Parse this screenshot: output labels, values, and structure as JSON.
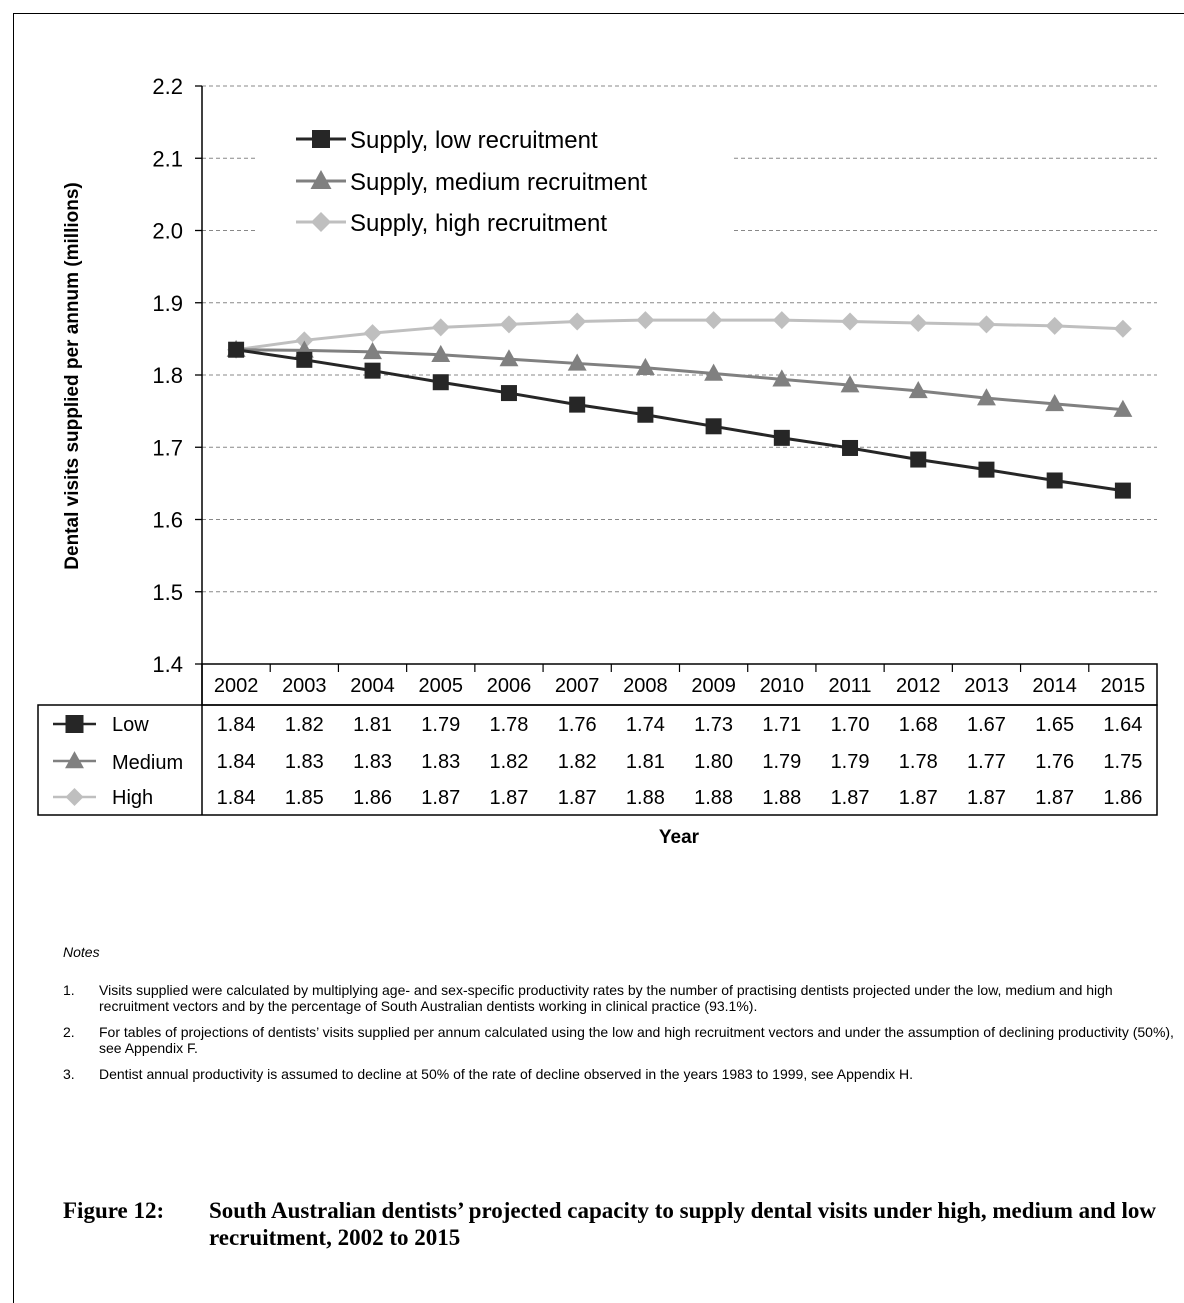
{
  "chart_data": {
    "type": "line",
    "title": "",
    "xlabel": "Year",
    "ylabel": "Dental visits supplied per annum (millions)",
    "ylim": [
      1.4,
      2.2
    ],
    "yticks": [
      "1.4",
      "1.5",
      "1.6",
      "1.7",
      "1.8",
      "1.9",
      "2.0",
      "2.1",
      "2.2"
    ],
    "grid": true,
    "legend_position": "top-left",
    "categories": [
      "2002",
      "2003",
      "2004",
      "2005",
      "2006",
      "2007",
      "2008",
      "2009",
      "2010",
      "2011",
      "2012",
      "2013",
      "2014",
      "2015"
    ],
    "series": [
      {
        "name": "Supply, low recruitment",
        "table_label": "Low",
        "marker": "square",
        "color": "#262626",
        "values": [
          1.835,
          1.821,
          1.806,
          1.79,
          1.775,
          1.759,
          1.745,
          1.729,
          1.713,
          1.699,
          1.683,
          1.669,
          1.654,
          1.64
        ],
        "table_values": [
          "1.84",
          "1.82",
          "1.81",
          "1.79",
          "1.78",
          "1.76",
          "1.74",
          "1.73",
          "1.71",
          "1.70",
          "1.68",
          "1.67",
          "1.65",
          "1.64"
        ]
      },
      {
        "name": "Supply, medium recruitment",
        "table_label": "Medium",
        "marker": "triangle",
        "color": "#808080",
        "values": [
          1.835,
          1.834,
          1.832,
          1.828,
          1.822,
          1.816,
          1.81,
          1.802,
          1.794,
          1.786,
          1.778,
          1.768,
          1.76,
          1.752
        ],
        "table_values": [
          "1.84",
          "1.83",
          "1.83",
          "1.83",
          "1.82",
          "1.82",
          "1.81",
          "1.80",
          "1.79",
          "1.79",
          "1.78",
          "1.77",
          "1.76",
          "1.75"
        ]
      },
      {
        "name": "Supply, high recruitment",
        "table_label": "High",
        "marker": "diamond",
        "color": "#bfbfbf",
        "values": [
          1.835,
          1.848,
          1.858,
          1.866,
          1.87,
          1.874,
          1.876,
          1.876,
          1.876,
          1.874,
          1.872,
          1.87,
          1.868,
          1.864
        ],
        "table_values": [
          "1.84",
          "1.85",
          "1.86",
          "1.87",
          "1.87",
          "1.87",
          "1.88",
          "1.88",
          "1.88",
          "1.87",
          "1.87",
          "1.87",
          "1.87",
          "1.86"
        ]
      }
    ]
  },
  "notes": {
    "title": "Notes",
    "items": [
      {
        "num": "1.",
        "text": "Visits supplied were calculated by multiplying age- and sex-specific productivity rates by the number of practising dentists projected under the low, medium and high recruitment vectors and by the percentage of South Australian dentists working in clinical practice (93.1%)."
      },
      {
        "num": "2.",
        "text": "For tables of projections of dentists’ visits supplied per annum calculated using the low and high recruitment vectors and under the assumption of declining productivity (50%), see Appendix F."
      },
      {
        "num": "3.",
        "text": "Dentist annual productivity is assumed to decline at 50% of the rate of decline observed in the years 1983 to 1999, see Appendix H."
      }
    ]
  },
  "caption": {
    "label": "Figure 12:",
    "text": "South Australian dentists’ projected capacity to supply dental visits under high, medium and low recruitment, 2002 to 2015"
  }
}
